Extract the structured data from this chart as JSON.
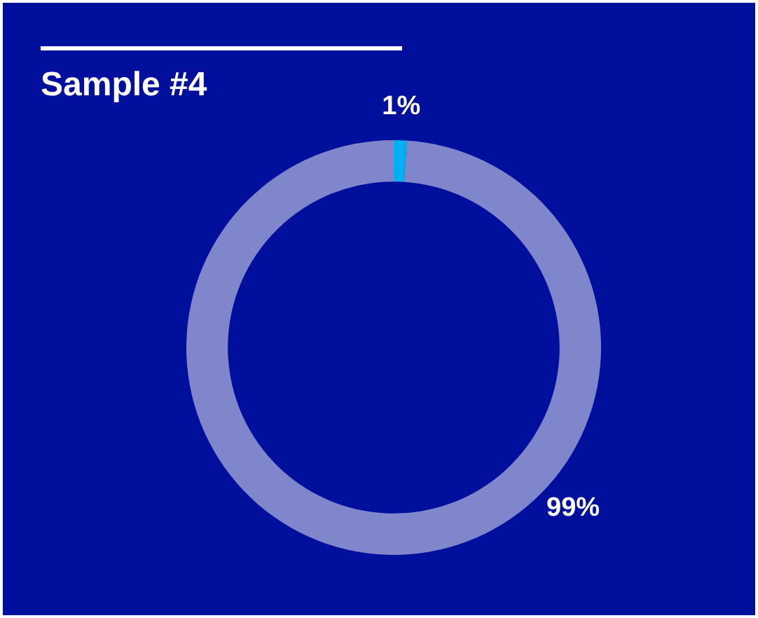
{
  "chart_data": {
    "type": "donut",
    "title": "Sample #4",
    "categories": [
      null,
      null
    ],
    "values": [
      1,
      99
    ],
    "colors": [
      "#00b0f0",
      "#7f86cc"
    ],
    "value_labels": [
      "1%",
      "99%"
    ],
    "legend": false
  }
}
